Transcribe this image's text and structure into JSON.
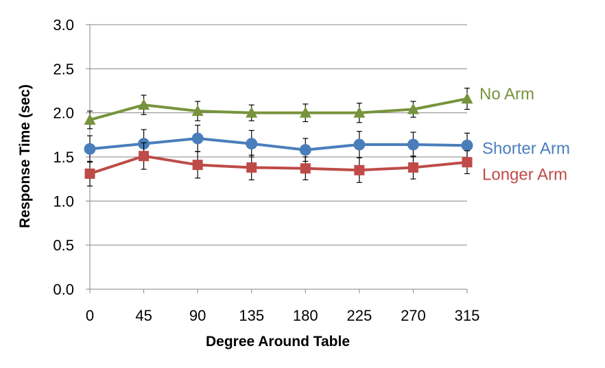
{
  "chart_data": {
    "type": "line",
    "title": "",
    "xlabel": "Degree Around Table",
    "ylabel": "Response Time (sec)",
    "x": [
      0,
      45,
      90,
      135,
      180,
      225,
      270,
      315
    ],
    "x_tick_labels": [
      "0",
      "45",
      "90",
      "135",
      "180",
      "225",
      "270",
      "315"
    ],
    "y_tick_labels": [
      "0.0",
      "0.5",
      "1.0",
      "1.5",
      "2.0",
      "2.5",
      "3.0"
    ],
    "ylim": [
      0,
      3
    ],
    "y_ticks": [
      0,
      0.5,
      1.0,
      1.5,
      2.0,
      2.5,
      3.0
    ],
    "grid": "horizontal",
    "legend": "labels at right end of lines",
    "series": [
      {
        "name": "No Arm",
        "color": "#77933C",
        "marker": "triangle",
        "values": [
          1.92,
          2.09,
          2.02,
          2.0,
          2.0,
          2.0,
          2.04,
          2.16
        ],
        "error": [
          0.1,
          0.11,
          0.11,
          0.09,
          0.1,
          0.11,
          0.09,
          0.12
        ]
      },
      {
        "name": "Shorter Arm",
        "color": "#4A7EBB",
        "marker": "circle",
        "values": [
          1.59,
          1.65,
          1.71,
          1.65,
          1.58,
          1.64,
          1.64,
          1.63
        ],
        "error": [
          0.15,
          0.16,
          0.15,
          0.15,
          0.13,
          0.15,
          0.14,
          0.14
        ]
      },
      {
        "name": "Longer Arm",
        "color": "#BE4B48",
        "marker": "square",
        "values": [
          1.31,
          1.51,
          1.41,
          1.38,
          1.37,
          1.35,
          1.38,
          1.44
        ],
        "error": [
          0.14,
          0.15,
          0.15,
          0.14,
          0.13,
          0.14,
          0.13,
          0.13
        ]
      }
    ]
  }
}
